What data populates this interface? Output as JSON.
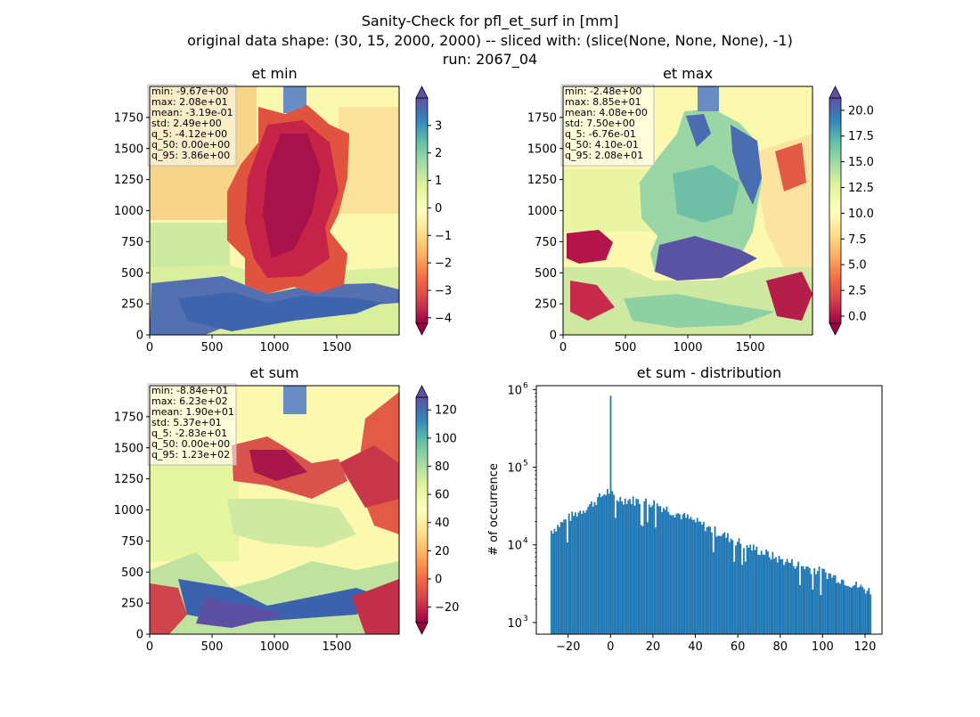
{
  "figure": {
    "suptitle": [
      "Sanity-Check for pfl_et_surf in [mm]",
      "original data shape: (30, 15, 2000, 2000) -- sliced with: (slice(None, None, None), -1)",
      "run: 2067_04"
    ]
  },
  "chart_data": [
    {
      "type": "heatmap",
      "title": "et min",
      "xlim": [
        0,
        2000
      ],
      "ylim": [
        0,
        2000
      ],
      "xticks": [
        "0",
        "500",
        "1000",
        "1500"
      ],
      "yticks": [
        "0",
        "250",
        "500",
        "750",
        "1000",
        "1250",
        "1500",
        "1750"
      ],
      "colormap": "Spectral",
      "colorbar": {
        "min": -4.2,
        "max": 4.0,
        "ticks": [
          "−4",
          "−3",
          "−2",
          "−1",
          "0",
          "1",
          "2",
          "3"
        ],
        "tick_values": [
          -4,
          -3,
          -2,
          -1,
          0,
          1,
          2,
          3
        ],
        "extend": "both"
      },
      "stats": [
        "min: -9.67e+00",
        "max: 2.08e+01",
        "mean: -3.19e-01",
        "std: 2.49e+00",
        "q_5: -4.12e+00",
        "q_50: 0.00e+00",
        "q_95: 3.86e+00"
      ]
    },
    {
      "type": "heatmap",
      "title": "et max",
      "xlim": [
        0,
        2000
      ],
      "ylim": [
        0,
        2000
      ],
      "xticks": [
        "0",
        "500",
        "1000",
        "1500"
      ],
      "yticks": [
        "0",
        "250",
        "500",
        "750",
        "1000",
        "1250",
        "1500",
        "1750"
      ],
      "colormap": "Spectral",
      "colorbar": {
        "min": -0.7,
        "max": 21.2,
        "ticks": [
          "0.0",
          "2.5",
          "5.0",
          "7.5",
          "10.0",
          "12.5",
          "15.0",
          "17.5",
          "20.0"
        ],
        "tick_values": [
          0,
          2.5,
          5,
          7.5,
          10,
          12.5,
          15,
          17.5,
          20
        ],
        "extend": "both"
      },
      "stats": [
        "min: -2.48e+00",
        "max: 8.85e+01",
        "mean: 4.08e+00",
        "std: 7.50e+00",
        "q_5: -6.76e-01",
        "q_50: 4.10e-01",
        "q_95: 2.08e+01"
      ]
    },
    {
      "type": "heatmap",
      "title": "et sum",
      "xlim": [
        0,
        2000
      ],
      "ylim": [
        0,
        2000
      ],
      "xticks": [
        "0",
        "500",
        "1000",
        "1500"
      ],
      "yticks": [
        "0",
        "250",
        "500",
        "750",
        "1000",
        "1250",
        "1500",
        "1750"
      ],
      "colormap": "Spectral",
      "colorbar": {
        "min": -31,
        "max": 129,
        "ticks": [
          "−20",
          "0",
          "20",
          "40",
          "60",
          "80",
          "100",
          "120"
        ],
        "tick_values": [
          -20,
          0,
          20,
          40,
          60,
          80,
          100,
          120
        ],
        "extend": "both"
      },
      "stats": [
        "min: -8.84e+01",
        "max: 6.23e+02",
        "mean: 1.90e+01",
        "std: 5.37e+01",
        "q_5: -2.83e+01",
        "q_50: 0.00e+00",
        "q_95: 1.23e+02"
      ]
    },
    {
      "type": "bar",
      "title": "et sum - distribution",
      "ylabel": "# of occurrence",
      "xlabel": "",
      "yscale": "log",
      "xlim": [
        -35,
        128
      ],
      "ylim_log10": [
        2.85,
        6.05
      ],
      "xticks": [
        "−20",
        "0",
        "20",
        "40",
        "60",
        "80",
        "100",
        "120"
      ],
      "xtick_values": [
        -20,
        0,
        20,
        40,
        60,
        80,
        100,
        120
      ],
      "ytick_labels": [
        {
          "base": "10",
          "exp": "3",
          "value": 3
        },
        {
          "base": "10",
          "exp": "4",
          "value": 4
        },
        {
          "base": "10",
          "exp": "5",
          "value": 5
        },
        {
          "base": "10",
          "exp": "6",
          "value": 6
        }
      ],
      "color": "#1f77b4",
      "bin_range": [
        -28.3,
        123
      ],
      "key_values": {
        "min_edge_count": 15000,
        "peak_negative": 50000,
        "spike_at_zero": 830000,
        "count_at_20": 35000,
        "count_at_40": 20000,
        "count_at_60": 11000,
        "count_at_80": 6500,
        "count_at_100": 4500,
        "count_at_120": 2500
      }
    }
  ]
}
